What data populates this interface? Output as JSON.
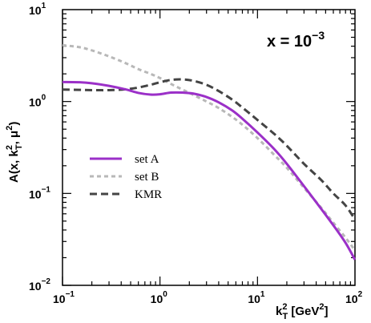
{
  "chart_data": {
    "type": "line",
    "xscale": "log",
    "yscale": "log",
    "xlim": [
      0.1,
      100
    ],
    "ylim": [
      0.01,
      10
    ],
    "xticks": [
      {
        "value": 0.1,
        "base": "10",
        "exp": "−1"
      },
      {
        "value": 1,
        "base": "10",
        "exp": "0"
      },
      {
        "value": 10,
        "base": "10",
        "exp": "1"
      },
      {
        "value": 100,
        "base": "10",
        "exp": "2"
      }
    ],
    "yticks": [
      {
        "value": 0.01,
        "base": "10",
        "exp": "−2"
      },
      {
        "value": 0.1,
        "base": "10",
        "exp": "−1"
      },
      {
        "value": 1,
        "base": "10",
        "exp": "0"
      },
      {
        "value": 10,
        "base": "10",
        "exp": "1"
      }
    ],
    "xlabel": {
      "main": "k",
      "sup": "2",
      "sub": "T",
      "rest": " [GeV",
      "sup2": "2",
      "close": "]"
    },
    "ylabel": {
      "text1": "A(x, k",
      "sup": "2",
      "sub": "T",
      "text2": ", ",
      "mu": "μ",
      "sup2": "2",
      "close": ")"
    },
    "annotation": {
      "text": "x = 10",
      "sup": "−3"
    },
    "legend_position": "middle-left",
    "grid": false,
    "series": [
      {
        "name": "set A",
        "color": "#9b30c8",
        "dash": "solid",
        "x": [
          0.1,
          0.15,
          0.2,
          0.3,
          0.45,
          0.6,
          0.8,
          1.0,
          1.3,
          1.7,
          2.2,
          3.0,
          4.0,
          5.5,
          7.0,
          10,
          15,
          20,
          30,
          45,
          60,
          80,
          100
        ],
        "y": [
          1.63,
          1.62,
          1.58,
          1.48,
          1.35,
          1.24,
          1.19,
          1.2,
          1.25,
          1.25,
          1.22,
          1.12,
          0.98,
          0.8,
          0.65,
          0.46,
          0.3,
          0.21,
          0.12,
          0.068,
          0.045,
          0.029,
          0.019
        ]
      },
      {
        "name": "set B",
        "color": "#b8b8b8",
        "dash": "dotted",
        "x": [
          0.1,
          0.15,
          0.2,
          0.3,
          0.45,
          0.6,
          0.8,
          1.0,
          1.3,
          1.7,
          2.2,
          3.0,
          4.0,
          5.5,
          7.0,
          10,
          15,
          20,
          30,
          45,
          60,
          80,
          100
        ],
        "y": [
          4.1,
          3.9,
          3.6,
          3.1,
          2.6,
          2.25,
          2.0,
          1.8,
          1.55,
          1.35,
          1.18,
          1.0,
          0.85,
          0.68,
          0.56,
          0.4,
          0.26,
          0.19,
          0.115,
          0.07,
          0.048,
          0.033,
          0.024
        ]
      },
      {
        "name": "KMR",
        "color": "#444444",
        "dash": "dashed",
        "x": [
          0.1,
          0.15,
          0.2,
          0.3,
          0.45,
          0.6,
          0.8,
          1.0,
          1.3,
          1.7,
          2.2,
          3.0,
          4.0,
          5.5,
          7.0,
          10,
          15,
          20,
          30,
          45,
          60,
          80,
          100
        ],
        "y": [
          1.35,
          1.34,
          1.33,
          1.33,
          1.36,
          1.42,
          1.52,
          1.62,
          1.72,
          1.74,
          1.68,
          1.52,
          1.3,
          1.05,
          0.86,
          0.63,
          0.44,
          0.33,
          0.21,
          0.14,
          0.1,
          0.074,
          0.052
        ]
      }
    ]
  }
}
